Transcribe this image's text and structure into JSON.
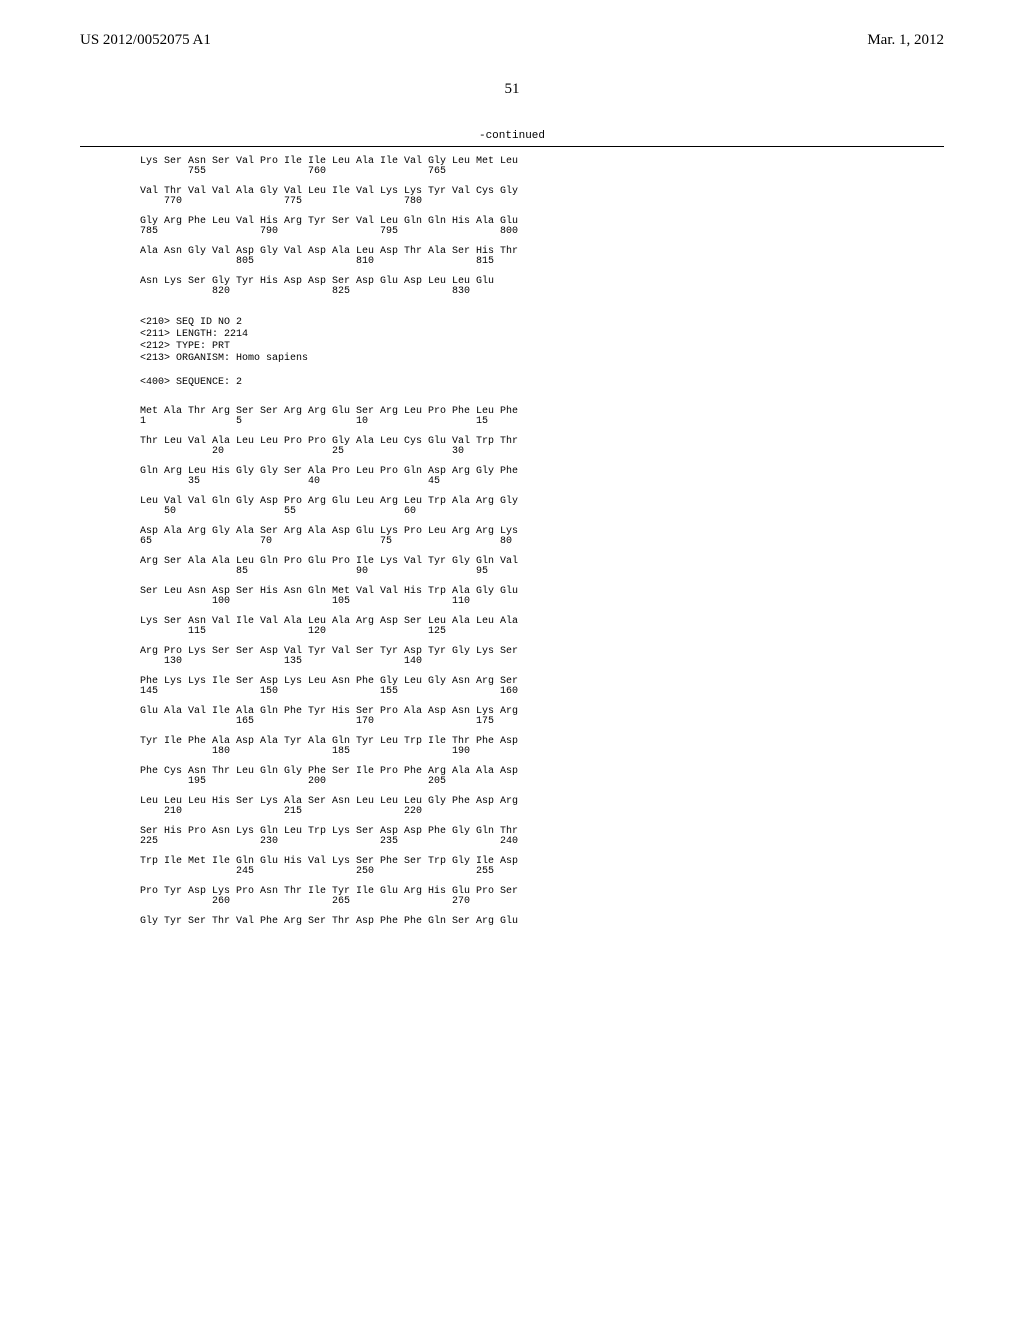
{
  "header": {
    "patent_no": "US 2012/0052075 A1",
    "date": "Mar. 1, 2012"
  },
  "page_number": "51",
  "continued_label": "-continued",
  "seq_block_1": [
    {
      "aa": "Lys Ser Asn Ser Val Pro Ile Ile Leu Ala Ile Val Gly Leu Met Leu",
      "n": "        755                 760                 765"
    },
    {
      "aa": "Val Thr Val Val Ala Gly Val Leu Ile Val Lys Lys Tyr Val Cys Gly",
      "n": "    770                 775                 780"
    },
    {
      "aa": "Gly Arg Phe Leu Val His Arg Tyr Ser Val Leu Gln Gln His Ala Glu",
      "n": "785                 790                 795                 800"
    },
    {
      "aa": "Ala Asn Gly Val Asp Gly Val Asp Ala Leu Asp Thr Ala Ser His Thr",
      "n": "                805                 810                 815"
    },
    {
      "aa": "Asn Lys Ser Gly Tyr His Asp Asp Ser Asp Glu Asp Leu Leu Glu",
      "n": "            820                 825                 830"
    }
  ],
  "meta": [
    "<210> SEQ ID NO 2",
    "<211> LENGTH: 2214",
    "<212> TYPE: PRT",
    "<213> ORGANISM: Homo sapiens",
    "",
    "<400> SEQUENCE: 2"
  ],
  "seq_block_2": [
    {
      "aa": "Met Ala Thr Arg Ser Ser Arg Arg Glu Ser Arg Leu Pro Phe Leu Phe",
      "n": "1               5                   10                  15"
    },
    {
      "aa": "Thr Leu Val Ala Leu Leu Pro Pro Gly Ala Leu Cys Glu Val Trp Thr",
      "n": "            20                  25                  30"
    },
    {
      "aa": "Gln Arg Leu His Gly Gly Ser Ala Pro Leu Pro Gln Asp Arg Gly Phe",
      "n": "        35                  40                  45"
    },
    {
      "aa": "Leu Val Val Gln Gly Asp Pro Arg Glu Leu Arg Leu Trp Ala Arg Gly",
      "n": "    50                  55                  60"
    },
    {
      "aa": "Asp Ala Arg Gly Ala Ser Arg Ala Asp Glu Lys Pro Leu Arg Arg Lys",
      "n": "65                  70                  75                  80"
    },
    {
      "aa": "Arg Ser Ala Ala Leu Gln Pro Glu Pro Ile Lys Val Tyr Gly Gln Val",
      "n": "                85                  90                  95"
    },
    {
      "aa": "Ser Leu Asn Asp Ser His Asn Gln Met Val Val His Trp Ala Gly Glu",
      "n": "            100                 105                 110"
    },
    {
      "aa": "Lys Ser Asn Val Ile Val Ala Leu Ala Arg Asp Ser Leu Ala Leu Ala",
      "n": "        115                 120                 125"
    },
    {
      "aa": "Arg Pro Lys Ser Ser Asp Val Tyr Val Ser Tyr Asp Tyr Gly Lys Ser",
      "n": "    130                 135                 140"
    },
    {
      "aa": "Phe Lys Lys Ile Ser Asp Lys Leu Asn Phe Gly Leu Gly Asn Arg Ser",
      "n": "145                 150                 155                 160"
    },
    {
      "aa": "Glu Ala Val Ile Ala Gln Phe Tyr His Ser Pro Ala Asp Asn Lys Arg",
      "n": "                165                 170                 175"
    },
    {
      "aa": "Tyr Ile Phe Ala Asp Ala Tyr Ala Gln Tyr Leu Trp Ile Thr Phe Asp",
      "n": "            180                 185                 190"
    },
    {
      "aa": "Phe Cys Asn Thr Leu Gln Gly Phe Ser Ile Pro Phe Arg Ala Ala Asp",
      "n": "        195                 200                 205"
    },
    {
      "aa": "Leu Leu Leu His Ser Lys Ala Ser Asn Leu Leu Leu Gly Phe Asp Arg",
      "n": "    210                 215                 220"
    },
    {
      "aa": "Ser His Pro Asn Lys Gln Leu Trp Lys Ser Asp Asp Phe Gly Gln Thr",
      "n": "225                 230                 235                 240"
    },
    {
      "aa": "Trp Ile Met Ile Gln Glu His Val Lys Ser Phe Ser Trp Gly Ile Asp",
      "n": "                245                 250                 255"
    },
    {
      "aa": "Pro Tyr Asp Lys Pro Asn Thr Ile Tyr Ile Glu Arg His Glu Pro Ser",
      "n": "            260                 265                 270"
    },
    {
      "aa": "Gly Tyr Ser Thr Val Phe Arg Ser Thr Asp Phe Phe Gln Ser Arg Glu",
      "n": ""
    }
  ],
  "style": {
    "bg": "#ffffff",
    "font_main": "Georgia, 'Times New Roman', serif",
    "font_mono": "'Courier New', monospace",
    "header_fontsize": 15,
    "seq_fontsize": 10
  }
}
